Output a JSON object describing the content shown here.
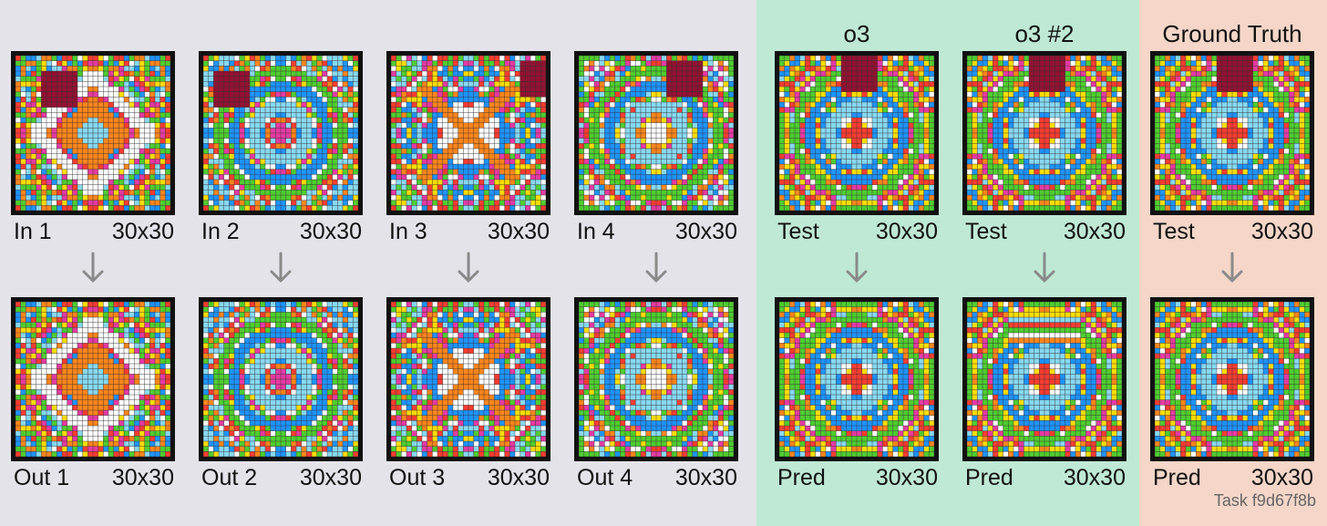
{
  "columns": [
    {
      "header": "",
      "input_label": "In 1",
      "input_size": "30x30",
      "output_label": "Out 1",
      "output_size": "30x30",
      "seed": 11,
      "style": "diamond",
      "blob": [
        3,
        5
      ]
    },
    {
      "header": "",
      "input_label": "In 2",
      "input_size": "30x30",
      "output_label": "Out 2",
      "output_size": "30x30",
      "seed": 22,
      "style": "rings",
      "blob": [
        3,
        2
      ]
    },
    {
      "header": "",
      "input_label": "In 3",
      "input_size": "30x30",
      "output_label": "Out 3",
      "output_size": "30x30",
      "seed": 33,
      "style": "hourglass",
      "blob": [
        1,
        25
      ]
    },
    {
      "header": "",
      "input_label": "In 4",
      "input_size": "30x30",
      "output_label": "Out 4",
      "output_size": "30x30",
      "seed": 44,
      "style": "rings",
      "blob": [
        1,
        17
      ]
    },
    {
      "header": "o3",
      "input_label": "Test",
      "input_size": "30x30",
      "output_label": "Pred",
      "output_size": "30x30",
      "seed": 55,
      "style": "rings",
      "blob": [
        0,
        12
      ]
    },
    {
      "header": "o3 #2",
      "input_label": "Test",
      "input_size": "30x30",
      "output_label": "Pred",
      "output_size": "30x30",
      "seed": 55,
      "style": "rings",
      "blob": [
        0,
        12
      ],
      "pred_style": "bands"
    },
    {
      "header": "Ground Truth",
      "input_label": "Test",
      "input_size": "30x30",
      "output_label": "Pred",
      "output_size": "30x30",
      "seed": 55,
      "style": "rings",
      "blob": [
        0,
        12
      ]
    }
  ],
  "task_id": "Task f9d67f8b",
  "palette": [
    "#ffffff",
    "#1e93ff",
    "#f93c31",
    "#4fcc30",
    "#ffdc00",
    "#999999",
    "#e53aa3",
    "#ff851b",
    "#87d8f1",
    "#921231"
  ],
  "arrow_color": "#8a8a8a"
}
